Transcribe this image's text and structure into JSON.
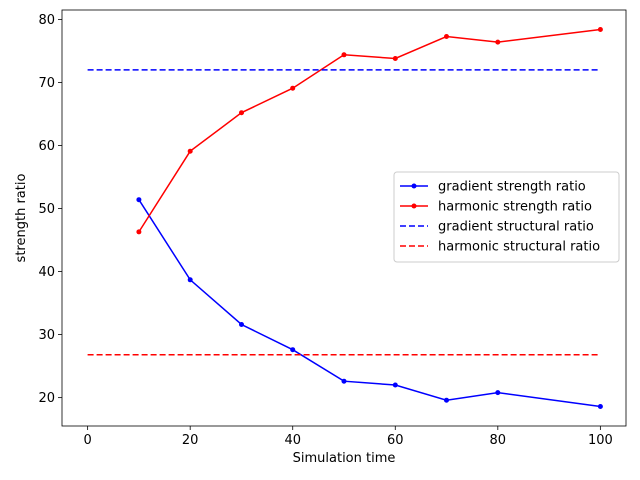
{
  "chart_data": {
    "type": "line",
    "xlabel": "Simulation time",
    "ylabel": "strength ratio",
    "xlim": [
      -5,
      105
    ],
    "ylim": [
      15.5,
      81.5
    ],
    "xticks": [
      0,
      20,
      40,
      60,
      80,
      100
    ],
    "yticks": [
      20,
      30,
      40,
      50,
      60,
      70,
      80
    ],
    "grid": false,
    "legend_position": "center-right",
    "series": [
      {
        "name": "gradient strength ratio",
        "color": "#0000ff",
        "style": "solid",
        "marker": "dot",
        "x": [
          10,
          20,
          30,
          40,
          50,
          60,
          70,
          80,
          90,
          100
        ],
        "values": [
          51.4,
          38.7,
          31.6,
          27.6,
          22.6,
          22.0,
          19.6,
          20.8,
          null,
          18.6
        ]
      },
      {
        "name": "harmonic strength ratio",
        "color": "#ff0000",
        "style": "solid",
        "marker": "dot",
        "x": [
          10,
          20,
          30,
          40,
          50,
          60,
          70,
          80,
          90,
          100
        ],
        "values": [
          46.3,
          59.1,
          65.2,
          69.1,
          74.4,
          73.8,
          77.3,
          76.4,
          null,
          78.4
        ]
      },
      {
        "name": "gradient structural ratio",
        "color": "#0000ff",
        "style": "dashed",
        "marker": "none",
        "x": [
          0,
          100
        ],
        "values": [
          72.0,
          72.0
        ]
      },
      {
        "name": "harmonic structural ratio",
        "color": "#ff0000",
        "style": "dashed",
        "marker": "none",
        "x": [
          0,
          100
        ],
        "values": [
          26.8,
          26.8
        ]
      }
    ]
  }
}
